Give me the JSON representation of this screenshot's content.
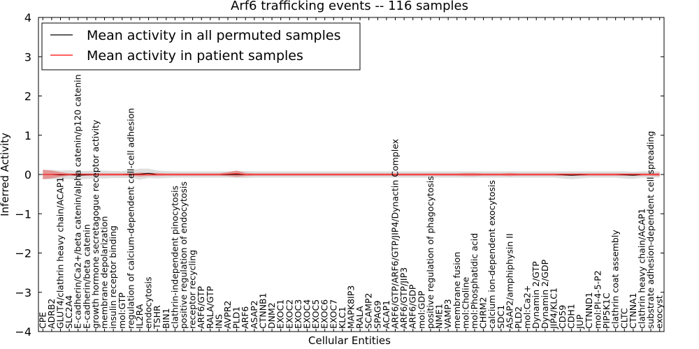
{
  "chart_data": {
    "type": "line",
    "title": "Arf6 trafficking events -- 116 samples",
    "xlabel": "Cellular Entities",
    "ylabel": "Inferred Activity",
    "ylim": [
      -4,
      4
    ],
    "yticks": [
      "−4",
      "−3",
      "−2",
      "−1",
      "0",
      "1",
      "2",
      "3",
      "4"
    ],
    "categories": [
      "CPE",
      "ADRB2",
      "GLUT4/clathrin heavy chain/ACAP1",
      "SLC2A4",
      "E-cadherin/Ca2+/beta catenin/alpha catenin/p120 catenin",
      "E-cadherin/beta catenin",
      "growth hormone secretagogue receptor activity",
      "membrane depolarization",
      "insulin receptor binding",
      "mol:GTP",
      "regulation of calcium-dependent cell-cell adhesion",
      "IL2RA",
      "endocytosis",
      "TSHR",
      "BIN1",
      "clathrin-independent pinocytosis",
      "positive regulation of endocytosis",
      "receptor recycling",
      "ARF6/GTP",
      "RALA/GTP",
      "INS",
      "AVPR2",
      "PLD1",
      "ARF6",
      "ASAP2",
      "CTNNB1",
      "DNM2",
      "EXOC1",
      "EXOC2",
      "EXOC3",
      "EXOC4",
      "EXOC5",
      "EXOC6",
      "EXOC7",
      "KLC1",
      "MAPK8IP3",
      "RALA",
      "SCAMP2",
      "SPAG9",
      "ACAP1",
      "ARF6/GTP/ARF6/GTP/JIP4/Dynactin Complex",
      "ARF6/GTP/JIP3",
      "ARF6/GDP",
      "mol:GDP",
      "positive regulation of phagocytosis",
      "NME1",
      "VAMP3",
      "membrane fusion",
      "mol:Choline",
      "mol:Phosphatidic acid",
      "CHRM2",
      "calcium ion-dependent exocytosis",
      "SDC1",
      "ASAP2/amphiphysin II",
      "PLD2",
      "mol:Ca2+",
      "Dynamin 2/GTP",
      "Dynamin 2/GDP",
      "JIP4/KLC1",
      "CD59",
      "CDH1",
      "JUP",
      "CTNND1",
      "mol:PI-4-5-P2",
      "PIP5K1C",
      "clathrin coat assembly",
      "CLTC",
      "CTNNA1",
      "clathrin heavy chain/ACAP1",
      "substrate adhesion-dependent cell spreading",
      "exocyst"
    ],
    "series": [
      {
        "name": "Mean activity in all permuted samples",
        "color": "#000000",
        "values": [
          0.0,
          0.0,
          -0.01,
          0.0,
          -0.02,
          -0.01,
          0.0,
          0.0,
          0.0,
          0.0,
          0.01,
          0.01,
          0.03,
          0.0,
          0.0,
          0.0,
          0.0,
          0.0,
          0.0,
          0.0,
          0.0,
          0.0,
          0.0,
          0.0,
          0.0,
          0.0,
          0.0,
          0.0,
          0.0,
          0.0,
          0.0,
          0.0,
          0.0,
          0.0,
          0.0,
          0.0,
          0.0,
          0.0,
          0.0,
          0.0,
          0.0,
          0.0,
          0.0,
          0.0,
          0.0,
          0.0,
          0.0,
          0.0,
          0.0,
          0.0,
          0.0,
          0.0,
          0.0,
          0.0,
          0.0,
          0.0,
          0.0,
          0.0,
          0.0,
          -0.01,
          -0.02,
          -0.01,
          0.0,
          0.0,
          0.0,
          0.0,
          -0.01,
          -0.02,
          0.0,
          0.0,
          0.0
        ],
        "band": [
          0.12,
          0.12,
          0.11,
          0.11,
          0.11,
          0.1,
          0.1,
          0.1,
          0.09,
          0.09,
          0.1,
          0.14,
          0.12,
          0.1,
          0.09,
          0.08,
          0.08,
          0.08,
          0.08,
          0.08,
          0.08,
          0.08,
          0.09,
          0.09,
          0.08,
          0.08,
          0.08,
          0.08,
          0.08,
          0.08,
          0.08,
          0.08,
          0.08,
          0.08,
          0.08,
          0.08,
          0.08,
          0.08,
          0.08,
          0.08,
          0.08,
          0.08,
          0.08,
          0.08,
          0.08,
          0.08,
          0.08,
          0.08,
          0.08,
          0.08,
          0.08,
          0.08,
          0.08,
          0.08,
          0.08,
          0.08,
          0.08,
          0.08,
          0.08,
          0.09,
          0.1,
          0.09,
          0.08,
          0.08,
          0.08,
          0.08,
          0.09,
          0.09,
          0.08,
          0.08,
          0.08
        ]
      },
      {
        "name": "Mean activity in patient samples",
        "color": "#ff0000",
        "values": [
          0.0,
          0.0,
          0.0,
          0.0,
          0.0,
          0.0,
          0.0,
          0.0,
          0.0,
          0.0,
          0.0,
          0.0,
          0.0,
          0.0,
          0.0,
          0.0,
          0.0,
          0.0,
          0.0,
          0.0,
          0.0,
          0.01,
          0.02,
          0.0,
          0.0,
          0.0,
          0.0,
          0.0,
          0.0,
          0.0,
          0.0,
          0.0,
          0.0,
          0.0,
          0.0,
          0.0,
          0.0,
          0.0,
          0.0,
          0.0,
          0.0,
          0.0,
          0.0,
          0.0,
          0.0,
          0.0,
          0.0,
          0.0,
          0.0,
          0.0,
          0.0,
          0.0,
          0.0,
          0.0,
          0.0,
          0.0,
          0.0,
          0.0,
          0.0,
          0.0,
          0.0,
          0.0,
          0.0,
          0.0,
          0.0,
          0.0,
          0.0,
          0.0,
          0.0,
          0.0,
          0.0
        ],
        "band": [
          0.12,
          0.1,
          0.06,
          0.03,
          0.03,
          0.03,
          0.03,
          0.03,
          0.03,
          0.03,
          0.03,
          0.05,
          0.04,
          0.04,
          0.03,
          0.03,
          0.03,
          0.03,
          0.03,
          0.03,
          0.03,
          0.05,
          0.08,
          0.04,
          0.03,
          0.03,
          0.03,
          0.03,
          0.03,
          0.03,
          0.03,
          0.03,
          0.03,
          0.03,
          0.03,
          0.03,
          0.03,
          0.03,
          0.03,
          0.03,
          0.03,
          0.03,
          0.03,
          0.03,
          0.03,
          0.03,
          0.03,
          0.03,
          0.04,
          0.04,
          0.03,
          0.03,
          0.03,
          0.04,
          0.03,
          0.03,
          0.03,
          0.03,
          0.03,
          0.03,
          0.03,
          0.03,
          0.03,
          0.03,
          0.03,
          0.03,
          0.03,
          0.03,
          0.03,
          0.03,
          0.04
        ]
      }
    ],
    "legend": {
      "position": "top-left",
      "entries": [
        "Mean activity in all permuted samples",
        "Mean activity in patient samples"
      ]
    }
  }
}
